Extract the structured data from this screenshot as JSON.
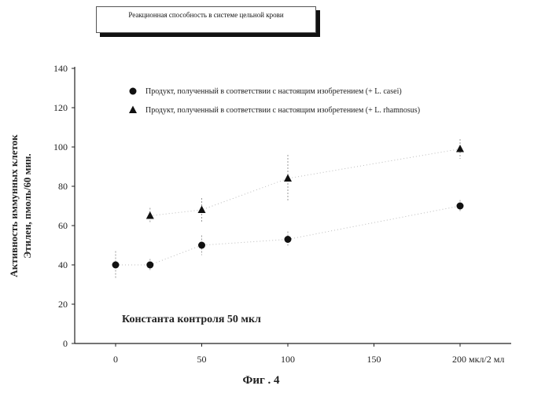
{
  "chart_data": {
    "type": "scatter",
    "title": "Реакционная способность в системе цельной крови",
    "ylabel_line1": "Активность иммунных клеток",
    "ylabel_line2": "Этилен, пмоль/60 мин.",
    "xlabel": "",
    "x_ticks": [
      "0",
      "50",
      "100",
      "150",
      "200 мкл/2 мл"
    ],
    "x_tick_values": [
      0,
      50,
      100,
      150,
      200
    ],
    "y_ticks": [
      "0",
      "20",
      "40",
      "60",
      "80",
      "100",
      "120",
      "140"
    ],
    "y_tick_values": [
      0,
      20,
      40,
      60,
      80,
      100,
      120,
      140
    ],
    "xlim": [
      0,
      200
    ],
    "ylim": [
      0,
      140
    ],
    "grid": false,
    "legend_position": "top-left",
    "series": [
      {
        "name": "Продукт, полученный в соответствии с настоящим изобретением (+ L. casei)",
        "marker": "circle",
        "x": [
          0,
          20,
          50,
          100,
          200
        ],
        "y": [
          40,
          40,
          50,
          53,
          70
        ],
        "error": [
          7,
          3,
          5,
          4,
          3
        ]
      },
      {
        "name": "Продукт, полученный в соответствии с настоящим изобретением (+ L. rhamnosus)",
        "marker": "triangle",
        "x": [
          20,
          50,
          100,
          200
        ],
        "y": [
          65,
          68,
          84,
          99
        ],
        "error": [
          4,
          6,
          12,
          5
        ]
      }
    ],
    "annotation": "Константа контроля 50 мкл",
    "caption": "Фиг . 4"
  }
}
